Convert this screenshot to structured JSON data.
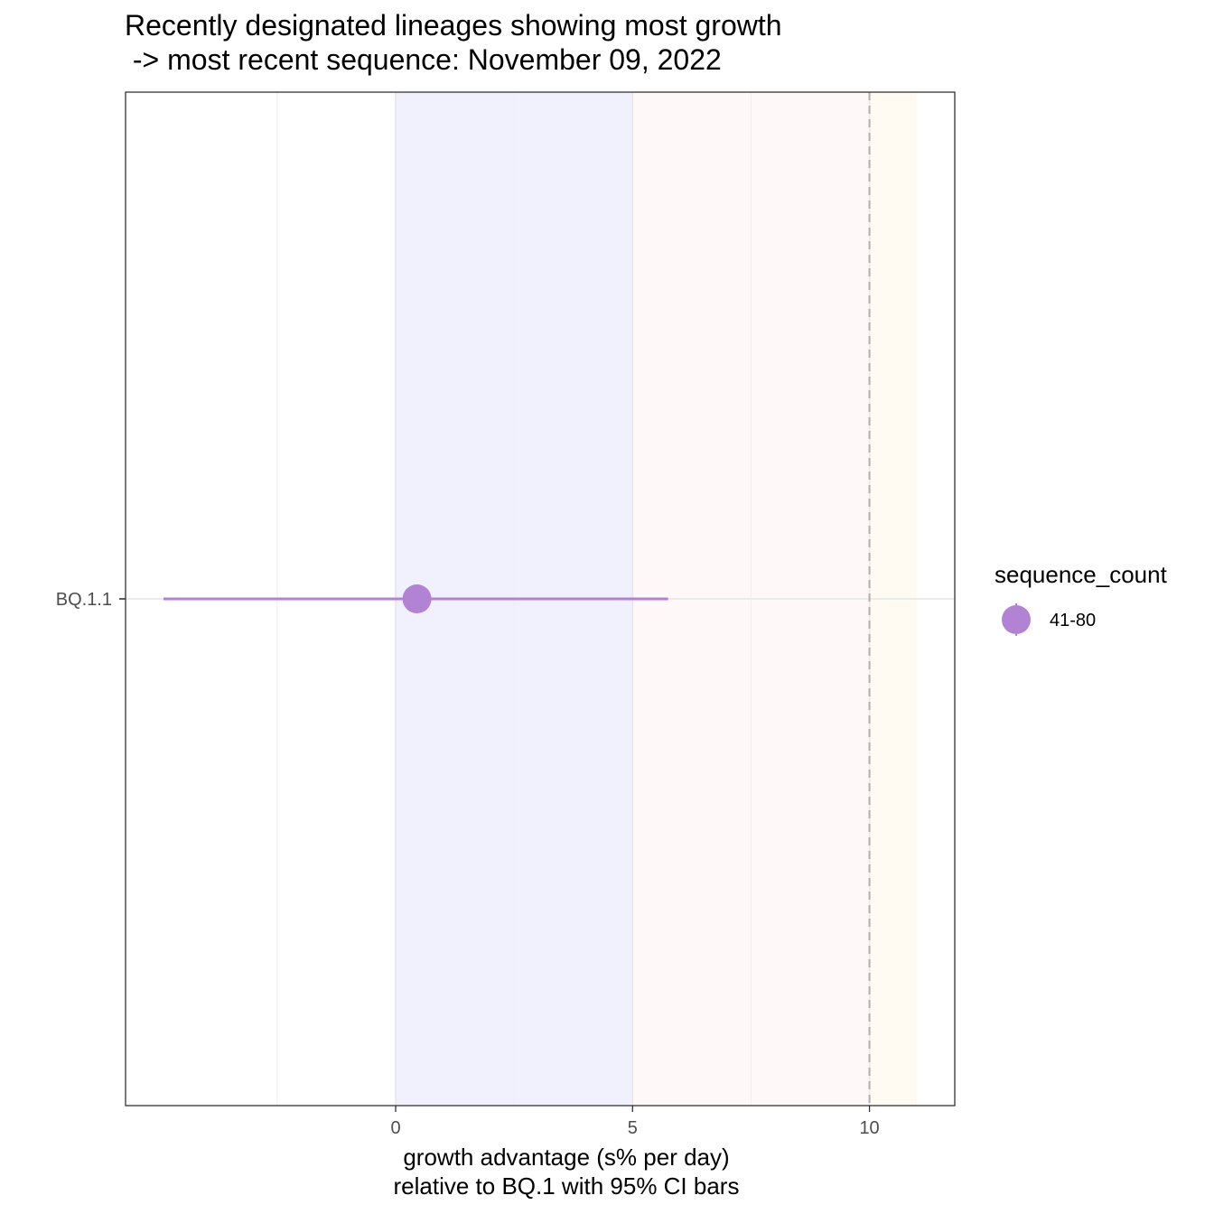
{
  "title_lines": [
    "Recently designated lineages showing most growth",
    " -> most recent sequence: November 09, 2022"
  ],
  "chart_data": {
    "type": "scatter",
    "title": "Recently designated lineages showing most growth\n -> most recent sequence: November 09, 2022",
    "xlabel_lines": [
      "growth advantage (s% per day)",
      "relative to  BQ.1  with 95% CI bars"
    ],
    "ylabel": "",
    "xlim": [
      -5.7,
      11.8
    ],
    "x_ticks": [
      0,
      5,
      10
    ],
    "x_minor_grid": [
      -2.5,
      2.5,
      7.5
    ],
    "grid": true,
    "categories": [
      "BQ.1.1"
    ],
    "points": [
      {
        "lineage": "BQ.1.1",
        "estimate": 0.45,
        "ci_low": -4.9,
        "ci_high": 5.75,
        "sequence_count": "41-80"
      }
    ],
    "bands": [
      {
        "from": 0,
        "to": 5,
        "color": "#f1f1fd"
      },
      {
        "from": 5,
        "to": 10,
        "color": "#fff8f8"
      },
      {
        "from": 10,
        "to": 11,
        "color": "#fffaf2"
      }
    ],
    "reference_line": {
      "x": 10,
      "style": "dashed",
      "color": "#b5aca9"
    },
    "point_color": "#b283d4",
    "legend": {
      "title": "sequence_count",
      "placement": "right",
      "items": [
        {
          "label": "41-80",
          "color": "#b283d4"
        }
      ]
    }
  }
}
